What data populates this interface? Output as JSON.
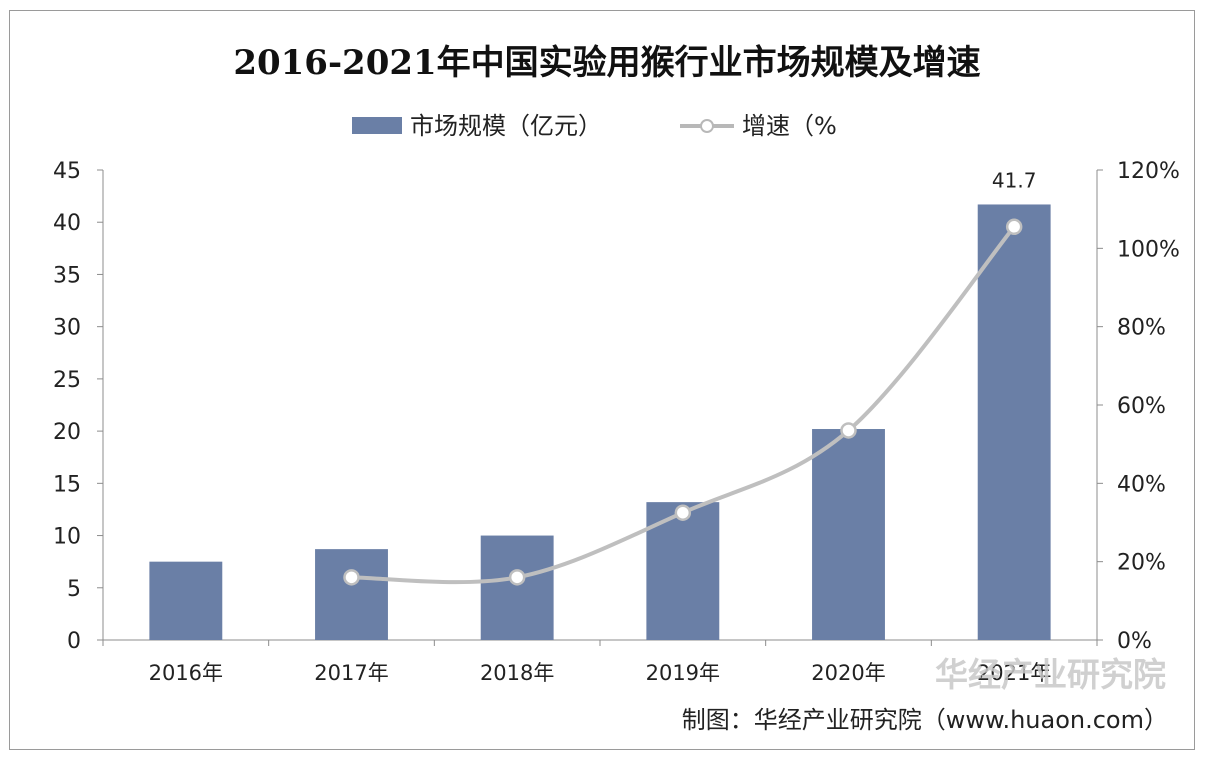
{
  "chart_data": {
    "type": "bar",
    "title": "2016-2021年中国实验用猴行业市场规模及增速",
    "categories": [
      "2016年",
      "2017年",
      "2018年",
      "2019年",
      "2020年",
      "2021年"
    ],
    "series": [
      {
        "name": "市场规模（亿元）",
        "type": "bar",
        "axis": "left",
        "color": "#6a7fa6",
        "values": [
          7.5,
          8.7,
          10.0,
          13.2,
          20.2,
          41.7
        ]
      },
      {
        "name": "增速（%",
        "type": "line",
        "axis": "right",
        "color": "#bfbfbf",
        "values": [
          null,
          16,
          16,
          32.5,
          53.5,
          105.5
        ]
      }
    ],
    "data_labels": [
      {
        "series": 0,
        "index": 5,
        "text": "41.7"
      }
    ],
    "y_left": {
      "min": 0,
      "max": 45,
      "step": 5,
      "ticks": [
        "0",
        "5",
        "10",
        "15",
        "20",
        "25",
        "30",
        "35",
        "40",
        "45"
      ]
    },
    "y_right": {
      "min": 0,
      "max": 120,
      "step": 20,
      "ticks": [
        "0%",
        "20%",
        "40%",
        "60%",
        "80%",
        "100%",
        "120%"
      ]
    },
    "legend_position": "top-center",
    "grid": false
  },
  "watermark": "华经产业研究院",
  "source": "制图：华经产业研究院（www.huaon.com）"
}
